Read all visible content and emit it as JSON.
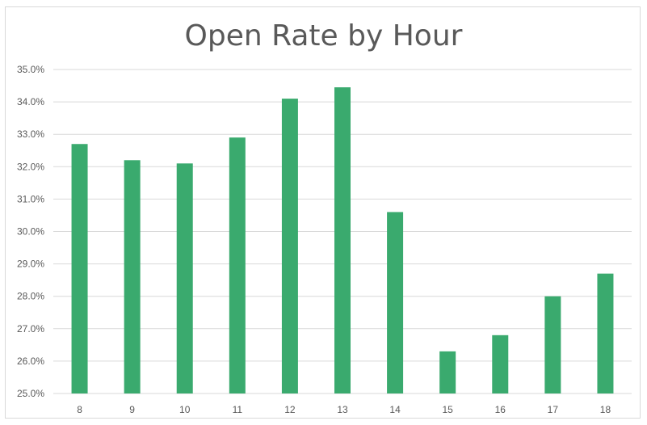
{
  "chart_data": {
    "type": "bar",
    "title": "Open Rate by Hour",
    "xlabel": "",
    "ylabel": "",
    "categories": [
      "8",
      "9",
      "10",
      "11",
      "12",
      "13",
      "14",
      "15",
      "16",
      "17",
      "18"
    ],
    "values": [
      32.7,
      32.2,
      32.1,
      32.9,
      34.1,
      34.45,
      30.6,
      26.3,
      26.8,
      28.0,
      28.7
    ],
    "ylim": [
      25.0,
      35.0
    ],
    "yticks": [
      25,
      26,
      27,
      28,
      29,
      30,
      31,
      32,
      33,
      34,
      35
    ],
    "ytick_labels": [
      "25.0%",
      "26.0%",
      "27.0%",
      "28.0%",
      "29.0%",
      "30.0%",
      "31.0%",
      "32.0%",
      "33.0%",
      "34.0%",
      "35.0%"
    ],
    "grid": true,
    "legend": "none",
    "colors": {
      "bar": "#3aaa6e",
      "grid": "#d9d9d9",
      "text": "#595959"
    }
  }
}
